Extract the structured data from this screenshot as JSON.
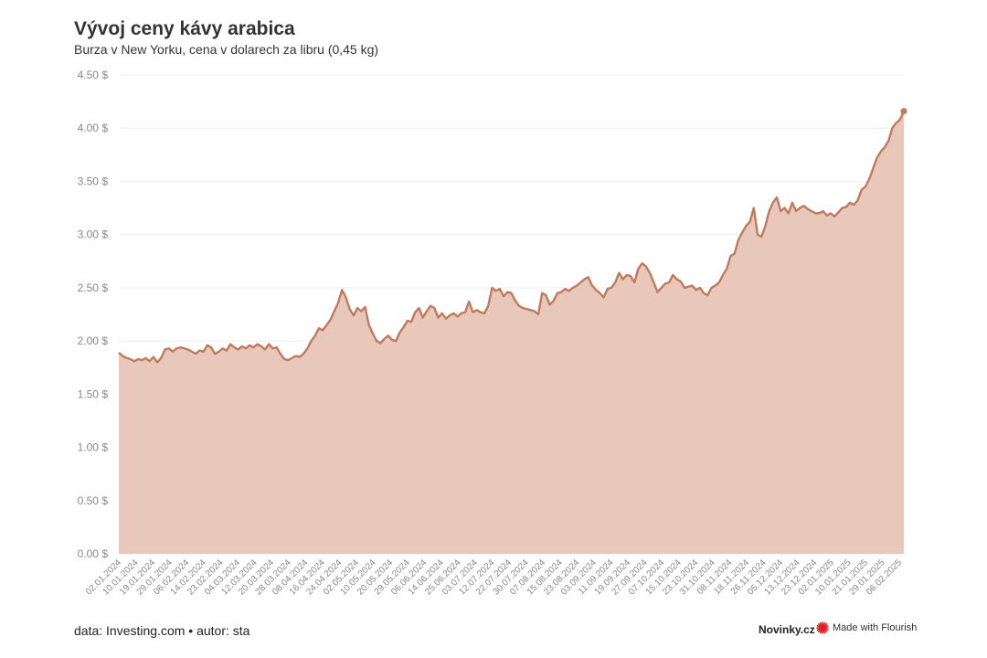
{
  "header": {
    "title": "Vývoj ceny kávy arabica",
    "subtitle": "Burza v New Yorku, cena v dolarech za libru (0,45 kg)"
  },
  "footer": {
    "source": "data: Investing.com • autor: sta",
    "brand": "Novinky.cz",
    "made_with": "Made with Flourish",
    "flourish_icon": "flourish-star-icon"
  },
  "colors": {
    "line": "#c27a5c",
    "area": "#e8c8ba",
    "grid": "#eeeeee",
    "tick": "#888888",
    "flourish": "#e02020"
  },
  "chart_data": {
    "type": "area",
    "title": "Vývoj ceny kávy arabica",
    "subtitle": "Burza v New Yorku, cena v dolarech za libru (0,45 kg)",
    "xlabel": "",
    "ylabel": "",
    "ylim": [
      0,
      4.5
    ],
    "grid": true,
    "y_ticks": [
      {
        "value": 0,
        "label": "0.00 $"
      },
      {
        "value": 0.5,
        "label": "0.50 $"
      },
      {
        "value": 1,
        "label": "1.00 $"
      },
      {
        "value": 1.5,
        "label": "1.50 $"
      },
      {
        "value": 2,
        "label": "2.00 $"
      },
      {
        "value": 2.5,
        "label": "2.50 $"
      },
      {
        "value": 3,
        "label": "3.00 $"
      },
      {
        "value": 3.5,
        "label": "3.50 $"
      },
      {
        "value": 4,
        "label": "4.00 $"
      },
      {
        "value": 4.5,
        "label": "4.50 $"
      }
    ],
    "x_tick_labels": [
      "02.01.2024",
      "10.01.2024",
      "19.01.2024",
      "29.01.2024",
      "06.02.2024",
      "14.02.2024",
      "23.02.2024",
      "04.03.2024",
      "12.03.2024",
      "20.03.2024",
      "28.03.2024",
      "08.04.2024",
      "16.04.2024",
      "24.04.2024",
      "02.05.2024",
      "10.05.2024",
      "20.05.2024",
      "29.05.2024",
      "06.06.2024",
      "14.06.2024",
      "25.06.2024",
      "03.07.2024",
      "12.07.2024",
      "22.07.2024",
      "30.07.2024",
      "07.08.2024",
      "15.08.2024",
      "23.08.2024",
      "03.09.2024",
      "11.09.2024",
      "19.09.2024",
      "27.09.2024",
      "07.10.2024",
      "15.10.2024",
      "23.10.2024",
      "31.10.2024",
      "08.11.2024",
      "18.11.2024",
      "26.11.2024",
      "05.12.2024",
      "13.12.2024",
      "23.12.2024",
      "02.01.2025",
      "10.01.2025",
      "21.01.2025",
      "29.01.2025",
      "06.02.2025"
    ],
    "series": [
      {
        "values": [
          1.89,
          1.86,
          1.84,
          1.83,
          1.81,
          1.83,
          1.82,
          1.84,
          1.81,
          1.85,
          1.8,
          1.84,
          1.92,
          1.93,
          1.9,
          1.93,
          1.94,
          1.93,
          1.92,
          1.9,
          1.88,
          1.91,
          1.9,
          1.96,
          1.94,
          1.88,
          1.9,
          1.93,
          1.91,
          1.97,
          1.94,
          1.92,
          1.95,
          1.93,
          1.96,
          1.94,
          1.97,
          1.95,
          1.92,
          1.97,
          1.93,
          1.94,
          1.88,
          1.83,
          1.82,
          1.84,
          1.86,
          1.85,
          1.88,
          1.93,
          2.0,
          2.05,
          2.12,
          2.1,
          2.15,
          2.2,
          2.28,
          2.36,
          2.48,
          2.41,
          2.3,
          2.24,
          2.31,
          2.28,
          2.32,
          2.15,
          2.07,
          2.0,
          1.98,
          2.02,
          2.05,
          2.01,
          2.0,
          2.08,
          2.13,
          2.19,
          2.18,
          2.27,
          2.31,
          2.22,
          2.28,
          2.33,
          2.31,
          2.22,
          2.26,
          2.21,
          2.24,
          2.26,
          2.23,
          2.26,
          2.27,
          2.37,
          2.27,
          2.29,
          2.27,
          2.26,
          2.33,
          2.5,
          2.47,
          2.49,
          2.42,
          2.46,
          2.45,
          2.38,
          2.33,
          2.31,
          2.3,
          2.29,
          2.28,
          2.25,
          2.45,
          2.43,
          2.34,
          2.38,
          2.45,
          2.46,
          2.49,
          2.47,
          2.5,
          2.52,
          2.55,
          2.58,
          2.6,
          2.52,
          2.48,
          2.45,
          2.41,
          2.49,
          2.5,
          2.55,
          2.64,
          2.58,
          2.62,
          2.61,
          2.55,
          2.68,
          2.73,
          2.7,
          2.64,
          2.55,
          2.46,
          2.5,
          2.54,
          2.55,
          2.62,
          2.58,
          2.56,
          2.5,
          2.51,
          2.52,
          2.48,
          2.5,
          2.45,
          2.43,
          2.5,
          2.52,
          2.55,
          2.62,
          2.68,
          2.8,
          2.82,
          2.95,
          3.02,
          3.08,
          3.12,
          3.25,
          3.0,
          2.98,
          3.08,
          3.22,
          3.3,
          3.35,
          3.22,
          3.25,
          3.2,
          3.3,
          3.22,
          3.25,
          3.27,
          3.24,
          3.22,
          3.2,
          3.2,
          3.22,
          3.18,
          3.2,
          3.17,
          3.21,
          3.25,
          3.26,
          3.3,
          3.28,
          3.32,
          3.42,
          3.45,
          3.52,
          3.62,
          3.72,
          3.78,
          3.82,
          3.88,
          4.0,
          4.05,
          4.08,
          4.16
        ]
      }
    ]
  }
}
